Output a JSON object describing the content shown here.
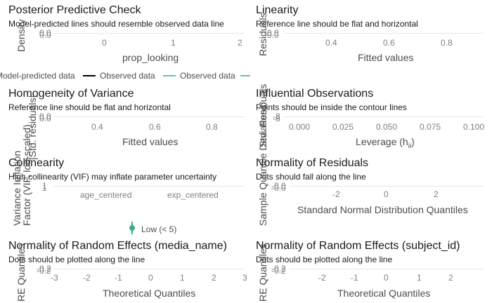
{
  "chart_data": [
    {
      "type": "line",
      "title": "Posterior Predictive Check",
      "subtitle": "Model-predicted lines should resemble observed data line",
      "xlabel": "prop_looking",
      "ylabel": "Density",
      "x_ticks": [
        "0",
        "1",
        "2"
      ],
      "y_ticks": [
        "0.0",
        "0.0"
      ],
      "legend": [
        "Model-predicted data",
        "Observed data",
        "Observed data"
      ],
      "series": [
        {
          "name": "Model-predicted data",
          "color": "#000000"
        },
        {
          "name": "Observed data",
          "color": "#3aaf85"
        }
      ]
    },
    {
      "type": "scatter",
      "title": "Linearity",
      "subtitle": "Reference line should be flat and horizontal",
      "xlabel": "Fitted values",
      "ylabel": "Residuals",
      "x_ticks": [
        "0.4",
        "0.6",
        "0.8"
      ],
      "y_ticks": [
        "-0.0",
        "-0.0"
      ]
    },
    {
      "type": "scatter",
      "title": "Homogeneity of Variance",
      "subtitle": "Reference line should be flat and horizontal",
      "xlabel": "Fitted values",
      "ylabel": "|Std. residuals|",
      "x_ticks": [
        "0.4",
        "0.6",
        "0.8"
      ],
      "y_ticks": [
        "0.0",
        "0.0"
      ]
    },
    {
      "type": "scatter",
      "title": "Influential Observations",
      "subtitle": "Points should be inside the contour lines",
      "xlabel": "Leverage (h",
      "xlabel_sub": "ii",
      "xlabel_end": ")",
      "ylabel": "Std. Residuals",
      "x_ticks": [
        "0.000",
        "0.025",
        "0.050",
        "0.075",
        "0.100"
      ],
      "y_ticks": [
        "-8",
        "-8"
      ]
    },
    {
      "type": "scatter",
      "title": "Collinearity",
      "subtitle": "High collinearity (VIF) may inflate parameter uncertainty",
      "xlabel": "",
      "ylabel": "Variance Inflation",
      "ylabel2": "Factor (VIF, log-scaled)",
      "categories": [
        "age_centered",
        "exp_centered"
      ],
      "y_ticks": [
        "1",
        "1"
      ],
      "legend": [
        "Low (< 5)"
      ],
      "legend_color": "#3aaf85"
    },
    {
      "type": "scatter",
      "title": "Normality of Residuals",
      "subtitle": "Dots should fall along the line",
      "xlabel": "Standard Normal Distribution Quantiles",
      "ylabel": "Sample Quantile Deviations",
      "x_ticks": [
        "-2",
        "0",
        "2"
      ],
      "y_ticks": [
        "-0.0",
        "-0.0"
      ]
    },
    {
      "type": "scatter",
      "title": "Normality of Random Effects (media_name)",
      "subtitle": "Dots should be plotted along the line",
      "xlabel": "Theoretical Quantiles",
      "ylabel": "RE Quantiles",
      "x_ticks": [
        "-3",
        "-2",
        "-1",
        "0",
        "1",
        "2",
        "3"
      ],
      "y_ticks": [
        "-0.2",
        "-0.2"
      ]
    },
    {
      "type": "scatter",
      "title": "Normality of Random Effects (subject_id)",
      "subtitle": "Dots should be plotted along the line",
      "xlabel": "Theoretical Quantiles",
      "ylabel": "RE Quantiles",
      "x_ticks": [
        "-2",
        "-1",
        "0",
        "1",
        "2"
      ],
      "y_ticks": [
        "-0.2",
        "-0.2"
      ]
    }
  ]
}
